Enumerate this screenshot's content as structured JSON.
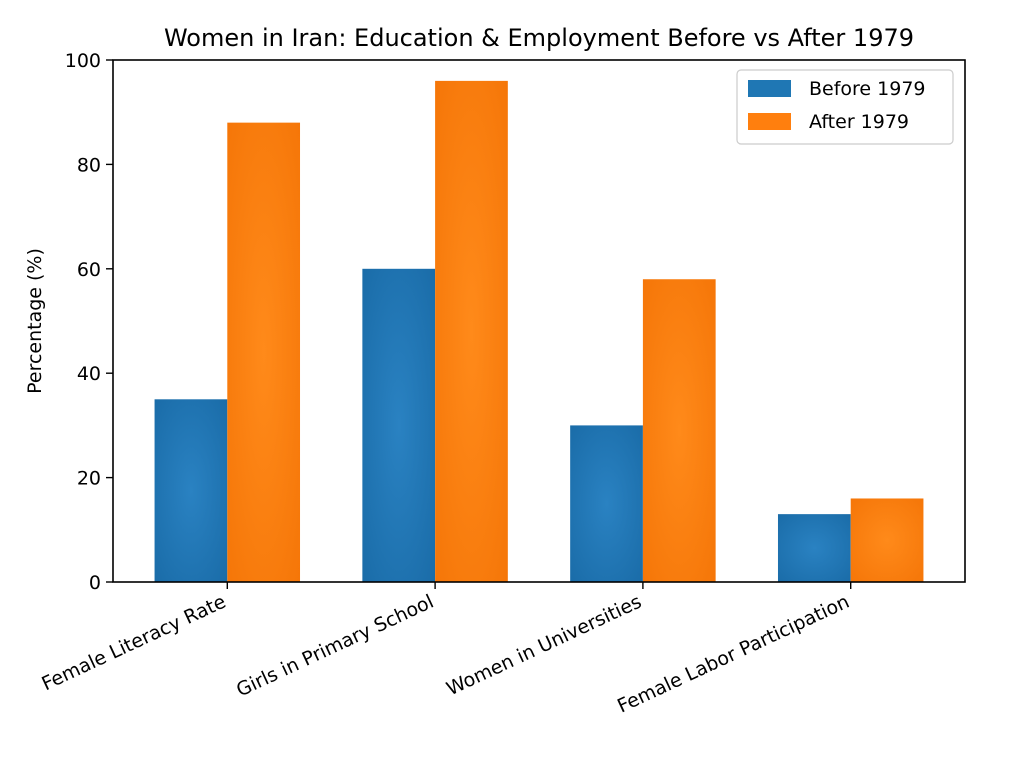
{
  "chart_data": {
    "type": "bar",
    "title": "Women in Iran: Education & Employment Before vs After 1979",
    "xlabel": "",
    "ylabel": "Percentage (%)",
    "ylim": [
      0,
      100
    ],
    "yticks": [
      0,
      20,
      40,
      60,
      80,
      100
    ],
    "categories": [
      "Female Literacy Rate",
      "Girls in Primary School",
      "Women in Universities",
      "Female Labor Participation"
    ],
    "series": [
      {
        "name": "Before 1979",
        "color": "#1f77b4",
        "values": [
          35,
          60,
          30,
          13
        ]
      },
      {
        "name": "After 1979",
        "color": "#ff7f0e",
        "values": [
          88,
          96,
          58,
          16
        ]
      }
    ],
    "legend": "top-right",
    "grid": false
  }
}
